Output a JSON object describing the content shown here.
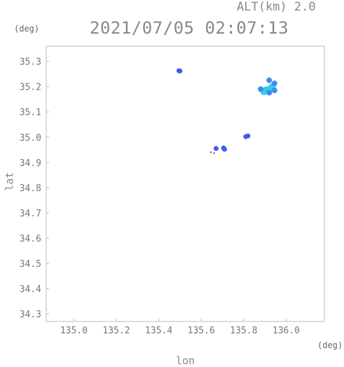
{
  "header": {
    "altitude_label": "ALT(km) 2.0",
    "timestamp": "2021/07/05 02:07:13"
  },
  "chart_data": {
    "type": "scatter",
    "title": "2021/07/05 02:07:13",
    "subtitle": "ALT(km) 2.0",
    "xlabel": "lon",
    "ylabel": "lat",
    "xunit": "(deg)",
    "yunit": "(deg)",
    "xlim": [
      134.87,
      136.18
    ],
    "ylim": [
      34.27,
      35.36
    ],
    "xticks": [
      135.0,
      135.2,
      135.4,
      135.6,
      135.8,
      136.0
    ],
    "xtick_labels": [
      "135.0",
      "135.2",
      "135.4",
      "135.6",
      "135.8",
      "136.0"
    ],
    "yticks": [
      34.3,
      34.4,
      34.5,
      34.6,
      34.7,
      34.8,
      34.9,
      35.0,
      35.1,
      35.2,
      35.3
    ],
    "ytick_labels": [
      "34.3",
      "34.4",
      "34.5",
      "34.6",
      "34.7",
      "34.8",
      "34.9",
      "35.0",
      "35.1",
      "35.2",
      "35.3"
    ],
    "grid": false,
    "points": [
      {
        "lon": 135.495,
        "lat": 35.263,
        "intensity": "low"
      },
      {
        "lon": 135.5,
        "lat": 35.262,
        "intensity": "low"
      },
      {
        "lon": 135.905,
        "lat": 35.187,
        "intensity": "high"
      },
      {
        "lon": 135.895,
        "lat": 35.18,
        "intensity": "high"
      },
      {
        "lon": 135.935,
        "lat": 35.2,
        "intensity": "high"
      },
      {
        "lon": 135.925,
        "lat": 35.192,
        "intensity": "high"
      },
      {
        "lon": 135.92,
        "lat": 35.225,
        "intensity": "mid"
      },
      {
        "lon": 135.945,
        "lat": 35.213,
        "intensity": "mid"
      },
      {
        "lon": 135.92,
        "lat": 35.176,
        "intensity": "mid"
      },
      {
        "lon": 135.88,
        "lat": 35.19,
        "intensity": "mid"
      },
      {
        "lon": 135.945,
        "lat": 35.185,
        "intensity": "mid"
      },
      {
        "lon": 135.82,
        "lat": 35.005,
        "intensity": "low"
      },
      {
        "lon": 135.81,
        "lat": 35.002,
        "intensity": "low"
      },
      {
        "lon": 135.705,
        "lat": 34.957,
        "intensity": "low"
      },
      {
        "lon": 135.71,
        "lat": 34.952,
        "intensity": "low"
      },
      {
        "lon": 135.67,
        "lat": 34.955,
        "intensity": "low"
      },
      {
        "lon": 135.645,
        "lat": 34.94,
        "intensity": "trace"
      },
      {
        "lon": 135.66,
        "lat": 34.937,
        "intensity": "trace"
      }
    ],
    "colors": {
      "low": "#3c5cf0",
      "mid": "#3b8cf2",
      "high": "#36cde8",
      "trace": "#222244"
    }
  }
}
